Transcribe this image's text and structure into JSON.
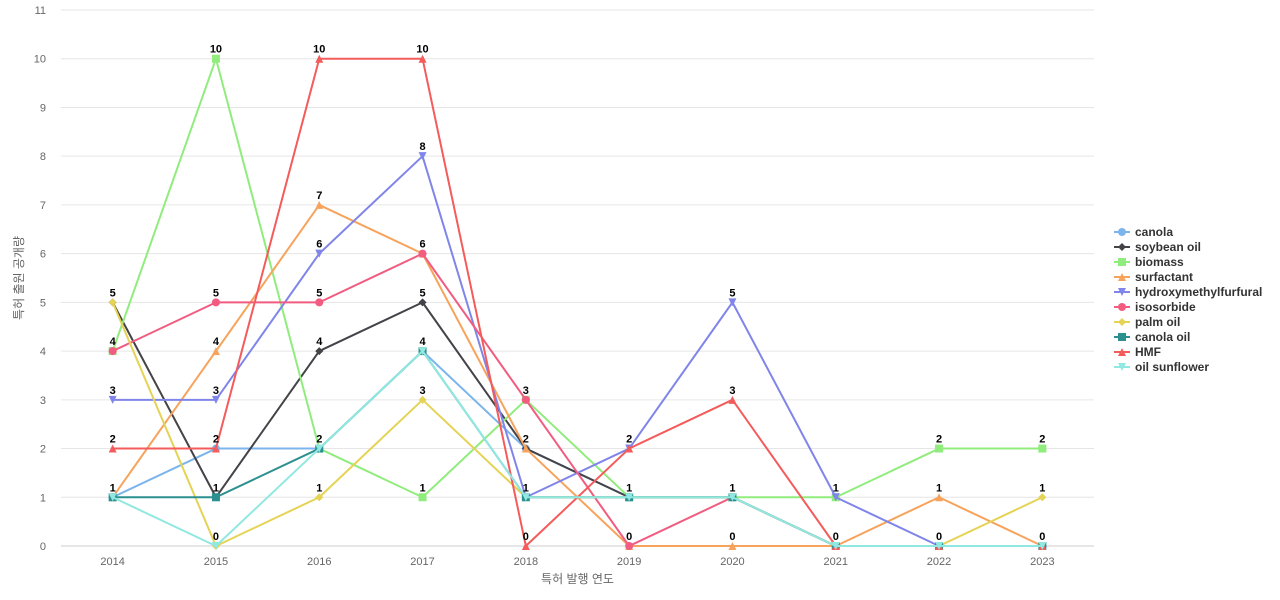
{
  "chart_data": {
    "type": "line",
    "title": "",
    "xlabel": "특허 발행 연도",
    "ylabel": "특허 출원 공개량",
    "ylim": [
      0,
      11
    ],
    "yticks": [
      0,
      1,
      2,
      3,
      4,
      5,
      6,
      7,
      8,
      9,
      10,
      11
    ],
    "grid": true,
    "legend": "right",
    "categories": [
      "2014",
      "2015",
      "2016",
      "2017",
      "2018",
      "2019",
      "2020",
      "2021",
      "2022",
      "2023"
    ],
    "series": [
      {
        "name": "canola",
        "color": "#7cb5ec",
        "marker": "circle",
        "values": [
          1,
          2,
          2,
          4,
          2,
          1,
          1,
          0,
          0,
          0
        ]
      },
      {
        "name": "soybean oil",
        "color": "#434348",
        "marker": "diamond",
        "values": [
          5,
          1,
          4,
          5,
          2,
          1,
          1,
          0,
          0,
          0
        ]
      },
      {
        "name": "biomass",
        "color": "#90ed7d",
        "marker": "square",
        "values": [
          4,
          10,
          2,
          1,
          3,
          1,
          1,
          1,
          2,
          2
        ]
      },
      {
        "name": "surfactant",
        "color": "#f7a35c",
        "marker": "triangle",
        "values": [
          1,
          4,
          7,
          6,
          2,
          0,
          0,
          0,
          1,
          0
        ]
      },
      {
        "name": "hydroxymethylfurfural",
        "color": "#8085e9",
        "marker": "triangle-down",
        "values": [
          3,
          3,
          6,
          8,
          1,
          2,
          5,
          1,
          0,
          0
        ]
      },
      {
        "name": "isosorbide",
        "color": "#f15c80",
        "marker": "circle",
        "values": [
          4,
          5,
          5,
          6,
          3,
          0,
          1,
          0,
          0,
          0
        ]
      },
      {
        "name": "palm oil",
        "color": "#e4d354",
        "marker": "diamond",
        "values": [
          5,
          0,
          1,
          3,
          1,
          1,
          1,
          0,
          0,
          1
        ]
      },
      {
        "name": "canola oil",
        "color": "#2b908f",
        "marker": "square",
        "values": [
          1,
          1,
          2,
          4,
          1,
          1,
          1,
          0,
          0,
          0
        ]
      },
      {
        "name": "HMF",
        "color": "#f45b5b",
        "marker": "triangle",
        "values": [
          2,
          2,
          10,
          10,
          0,
          2,
          3,
          0,
          0,
          0
        ]
      },
      {
        "name": "oil sunflower",
        "color": "#91e8e1",
        "marker": "triangle-down",
        "values": [
          1,
          0,
          2,
          4,
          1,
          1,
          1,
          0,
          0,
          0
        ]
      }
    ],
    "data_labels": [
      {
        "category": "2014",
        "labels": [
          "1",
          "2",
          "3",
          "4",
          "5"
        ]
      },
      {
        "category": "2015",
        "labels": [
          "0",
          "1",
          "2",
          "3",
          "4",
          "5",
          "10"
        ]
      },
      {
        "category": "2016",
        "labels": [
          "1",
          "2",
          "4",
          "5",
          "6",
          "7",
          "10"
        ]
      },
      {
        "category": "2017",
        "labels": [
          "1",
          "3",
          "4",
          "5",
          "6",
          "8",
          "10"
        ]
      },
      {
        "category": "2018",
        "labels": [
          "0",
          "1",
          "2",
          "3"
        ]
      },
      {
        "category": "2019",
        "labels": [
          "0",
          "1",
          "2"
        ]
      },
      {
        "category": "2020",
        "labels": [
          "0",
          "1",
          "3",
          "5"
        ]
      },
      {
        "category": "2021",
        "labels": [
          "0",
          "1"
        ]
      },
      {
        "category": "2022",
        "labels": [
          "0",
          "1",
          "2"
        ]
      },
      {
        "category": "2023",
        "labels": [
          "0",
          "1",
          "2"
        ]
      }
    ]
  }
}
